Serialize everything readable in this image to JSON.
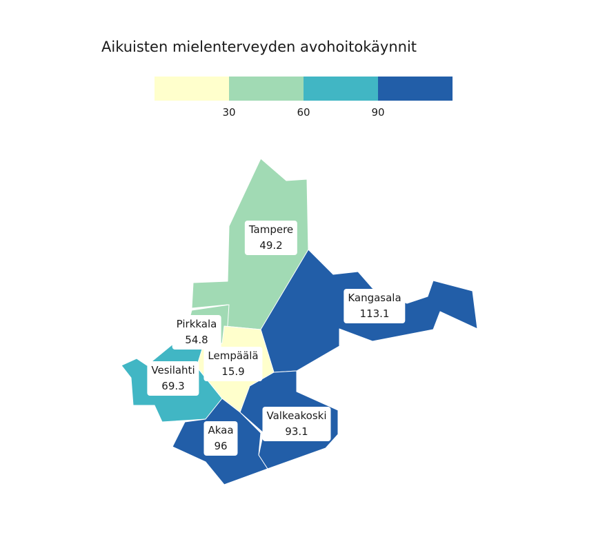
{
  "title": "Aikuisten mielenterveyden avohoitokäynnit",
  "legend": {
    "colors": [
      "#ffffcc",
      "#a1dab4",
      "#41b6c4",
      "#225ea8"
    ],
    "breaks": [
      "30",
      "60",
      "90"
    ]
  },
  "regions": [
    {
      "name": "Tampere",
      "value": "49.2",
      "color": "#a1dab4"
    },
    {
      "name": "Kangasala",
      "value": "113.1",
      "color": "#225ea8"
    },
    {
      "name": "Pirkkala",
      "value": "54.8",
      "color": "#a1dab4"
    },
    {
      "name": "Lempäälä",
      "value": "15.9",
      "color": "#ffffcc"
    },
    {
      "name": "Vesilahti",
      "value": "69.3",
      "color": "#41b6c4"
    },
    {
      "name": "Akaa",
      "value": "96",
      "color": "#225ea8"
    },
    {
      "name": "Valkeakoski",
      "value": "93.1",
      "color": "#225ea8"
    }
  ]
}
